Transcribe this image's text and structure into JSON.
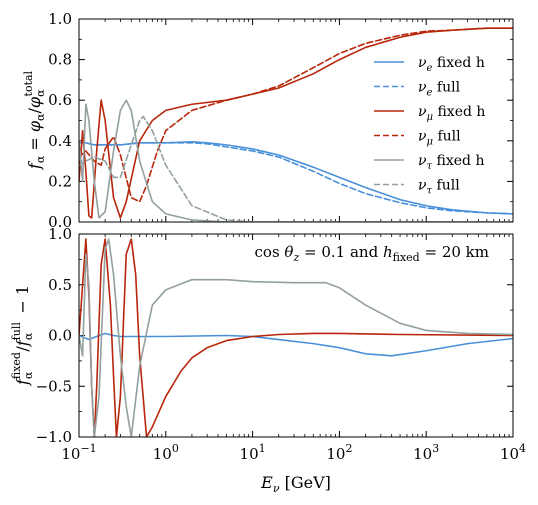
{
  "colors": {
    "nu_e": "#4a90d9",
    "nu_mu": "#b8260b",
    "nu_tau": "#93a09f"
  },
  "chart_data": [
    {
      "type": "line",
      "x_scale": "log",
      "xlim": [
        0.1,
        10000
      ],
      "ylim": [
        0.0,
        1.0
      ],
      "y_ticks": [
        "0.0",
        "0.2",
        "0.4",
        "0.6",
        "0.8",
        "1.0"
      ],
      "ylabel": "f_α = φ_α/φ_α^total",
      "legend_position": "right",
      "series": [
        {
          "name": "ν_e fixed h",
          "color": "#4a90d9",
          "style": "solid",
          "points": [
            [
              0.1,
              0.39
            ],
            [
              0.12,
              0.39
            ],
            [
              0.15,
              0.38
            ],
            [
              0.2,
              0.38
            ],
            [
              0.3,
              0.38
            ],
            [
              0.5,
              0.39
            ],
            [
              1,
              0.39
            ],
            [
              2,
              0.395
            ],
            [
              3,
              0.39
            ],
            [
              5,
              0.38
            ],
            [
              10,
              0.36
            ],
            [
              20,
              0.33
            ],
            [
              50,
              0.27
            ],
            [
              100,
              0.22
            ],
            [
              200,
              0.17
            ],
            [
              500,
              0.11
            ],
            [
              1000,
              0.08
            ],
            [
              2000,
              0.06
            ],
            [
              5000,
              0.045
            ],
            [
              10000,
              0.04
            ]
          ]
        },
        {
          "name": "ν_e full",
          "color": "#4a90d9",
          "style": "dashed",
          "points": [
            [
              0.1,
              0.39
            ],
            [
              0.12,
              0.39
            ],
            [
              0.15,
              0.38
            ],
            [
              0.2,
              0.38
            ],
            [
              0.3,
              0.38
            ],
            [
              0.5,
              0.39
            ],
            [
              1,
              0.39
            ],
            [
              2,
              0.39
            ],
            [
              3,
              0.385
            ],
            [
              5,
              0.37
            ],
            [
              10,
              0.35
            ],
            [
              20,
              0.32
            ],
            [
              50,
              0.25
            ],
            [
              100,
              0.19
            ],
            [
              200,
              0.14
            ],
            [
              500,
              0.095
            ],
            [
              1000,
              0.07
            ],
            [
              2000,
              0.055
            ],
            [
              5000,
              0.045
            ],
            [
              10000,
              0.04
            ]
          ]
        },
        {
          "name": "ν_μ fixed h",
          "color": "#b8260b",
          "style": "solid",
          "points": [
            [
              0.1,
              0.2
            ],
            [
              0.11,
              0.45
            ],
            [
              0.12,
              0.25
            ],
            [
              0.13,
              0.03
            ],
            [
              0.14,
              0.02
            ],
            [
              0.16,
              0.35
            ],
            [
              0.18,
              0.6
            ],
            [
              0.2,
              0.5
            ],
            [
              0.25,
              0.12
            ],
            [
              0.3,
              0.02
            ],
            [
              0.35,
              0.1
            ],
            [
              0.5,
              0.4
            ],
            [
              0.7,
              0.5
            ],
            [
              1,
              0.55
            ],
            [
              2,
              0.58
            ],
            [
              5,
              0.6
            ],
            [
              10,
              0.63
            ],
            [
              20,
              0.66
            ],
            [
              50,
              0.73
            ],
            [
              100,
              0.8
            ],
            [
              200,
              0.86
            ],
            [
              500,
              0.91
            ],
            [
              1000,
              0.935
            ],
            [
              2000,
              0.945
            ],
            [
              5000,
              0.955
            ],
            [
              10000,
              0.955
            ]
          ]
        },
        {
          "name": "ν_μ full",
          "color": "#b8260b",
          "style": "dashed",
          "points": [
            [
              0.1,
              0.32
            ],
            [
              0.12,
              0.35
            ],
            [
              0.15,
              0.3
            ],
            [
              0.18,
              0.28
            ],
            [
              0.2,
              0.36
            ],
            [
              0.25,
              0.42
            ],
            [
              0.3,
              0.33
            ],
            [
              0.4,
              0.12
            ],
            [
              0.5,
              0.1
            ],
            [
              0.6,
              0.18
            ],
            [
              0.8,
              0.35
            ],
            [
              1,
              0.45
            ],
            [
              2,
              0.55
            ],
            [
              5,
              0.6
            ],
            [
              10,
              0.63
            ],
            [
              20,
              0.67
            ],
            [
              50,
              0.76
            ],
            [
              100,
              0.83
            ],
            [
              200,
              0.88
            ],
            [
              500,
              0.92
            ],
            [
              1000,
              0.94
            ],
            [
              2000,
              0.945
            ],
            [
              5000,
              0.955
            ],
            [
              10000,
              0.955
            ]
          ]
        },
        {
          "name": "ν_τ fixed h",
          "color": "#93a09f",
          "style": "solid",
          "points": [
            [
              0.1,
              0.4
            ],
            [
              0.11,
              0.2
            ],
            [
              0.12,
              0.58
            ],
            [
              0.13,
              0.5
            ],
            [
              0.15,
              0.2
            ],
            [
              0.17,
              0.02
            ],
            [
              0.2,
              0.05
            ],
            [
              0.25,
              0.35
            ],
            [
              0.3,
              0.55
            ],
            [
              0.35,
              0.6
            ],
            [
              0.4,
              0.55
            ],
            [
              0.5,
              0.3
            ],
            [
              0.7,
              0.1
            ],
            [
              1,
              0.04
            ],
            [
              2,
              0.01
            ],
            [
              5,
              0.0
            ],
            [
              10000,
              0.0
            ]
          ]
        },
        {
          "name": "ν_τ full",
          "color": "#93a09f",
          "style": "dashed",
          "points": [
            [
              0.1,
              0.28
            ],
            [
              0.12,
              0.3
            ],
            [
              0.15,
              0.32
            ],
            [
              0.2,
              0.3
            ],
            [
              0.25,
              0.22
            ],
            [
              0.3,
              0.22
            ],
            [
              0.4,
              0.38
            ],
            [
              0.5,
              0.5
            ],
            [
              0.55,
              0.52
            ],
            [
              0.7,
              0.45
            ],
            [
              1,
              0.28
            ],
            [
              2,
              0.08
            ],
            [
              5,
              0.01
            ],
            [
              10,
              0.0
            ],
            [
              10000,
              0.0
            ]
          ]
        }
      ]
    },
    {
      "type": "line",
      "x_scale": "log",
      "xlim": [
        0.1,
        10000
      ],
      "ylim": [
        -1.0,
        1.0
      ],
      "x_ticks": [
        "10−1",
        "100",
        "101",
        "102",
        "103",
        "104"
      ],
      "y_ticks": [
        "−1.0",
        "−0.5",
        "0.0",
        "0.5",
        "1.0"
      ],
      "xlabel": "E_ν [GeV]",
      "ylabel": "f_α^fixed/f_α^full − 1",
      "annotation": "cos θ_z = 0.1 and h_fixed = 20 km",
      "series": [
        {
          "name": "ν_e",
          "color": "#4a90d9",
          "style": "solid",
          "points": [
            [
              0.1,
              0.0
            ],
            [
              0.13,
              -0.04
            ],
            [
              0.17,
              0.0
            ],
            [
              0.2,
              0.02
            ],
            [
              0.25,
              0.0
            ],
            [
              0.3,
              -0.01
            ],
            [
              1,
              -0.01
            ],
            [
              5,
              0.0
            ],
            [
              10,
              -0.01
            ],
            [
              20,
              -0.04
            ],
            [
              50,
              -0.08
            ],
            [
              100,
              -0.12
            ],
            [
              200,
              -0.18
            ],
            [
              400,
              -0.2
            ],
            [
              1000,
              -0.15
            ],
            [
              3000,
              -0.08
            ],
            [
              10000,
              -0.03
            ]
          ]
        },
        {
          "name": "ν_μ",
          "color": "#b8260b",
          "style": "solid",
          "points": [
            [
              0.1,
              0.0
            ],
            [
              0.12,
              0.95
            ],
            [
              0.13,
              0.4
            ],
            [
              0.14,
              -0.5
            ],
            [
              0.15,
              -1.0
            ],
            [
              0.16,
              -0.5
            ],
            [
              0.18,
              0.7
            ],
            [
              0.2,
              0.95
            ],
            [
              0.23,
              0.3
            ],
            [
              0.25,
              -0.4
            ],
            [
              0.27,
              -1.0
            ],
            [
              0.3,
              -0.6
            ],
            [
              0.35,
              0.8
            ],
            [
              0.4,
              0.95
            ],
            [
              0.45,
              0.6
            ],
            [
              0.5,
              -0.2
            ],
            [
              0.6,
              -1.0
            ],
            [
              0.7,
              -0.9
            ],
            [
              1,
              -0.6
            ],
            [
              1.5,
              -0.35
            ],
            [
              2,
              -0.22
            ],
            [
              3,
              -0.12
            ],
            [
              5,
              -0.05
            ],
            [
              10,
              -0.01
            ],
            [
              20,
              0.01
            ],
            [
              50,
              0.02
            ],
            [
              100,
              0.02
            ],
            [
              500,
              0.01
            ],
            [
              10000,
              0.0
            ]
          ]
        },
        {
          "name": "ν_τ",
          "color": "#93a09f",
          "style": "solid",
          "points": [
            [
              0.1,
              0.0
            ],
            [
              0.11,
              -0.2
            ],
            [
              0.12,
              0.8
            ],
            [
              0.13,
              0.5
            ],
            [
              0.14,
              -0.5
            ],
            [
              0.15,
              -1.0
            ],
            [
              0.17,
              -0.6
            ],
            [
              0.2,
              0.85
            ],
            [
              0.22,
              0.95
            ],
            [
              0.25,
              0.6
            ],
            [
              0.3,
              -0.2
            ],
            [
              0.35,
              -0.7
            ],
            [
              0.4,
              -1.0
            ],
            [
              0.5,
              -0.3
            ],
            [
              0.7,
              0.3
            ],
            [
              1,
              0.45
            ],
            [
              2,
              0.55
            ],
            [
              5,
              0.55
            ],
            [
              10,
              0.53
            ],
            [
              30,
              0.52
            ],
            [
              70,
              0.52
            ],
            [
              100,
              0.47
            ],
            [
              200,
              0.3
            ],
            [
              500,
              0.12
            ],
            [
              1000,
              0.05
            ],
            [
              3000,
              0.02
            ],
            [
              10000,
              0.01
            ]
          ]
        }
      ]
    }
  ]
}
